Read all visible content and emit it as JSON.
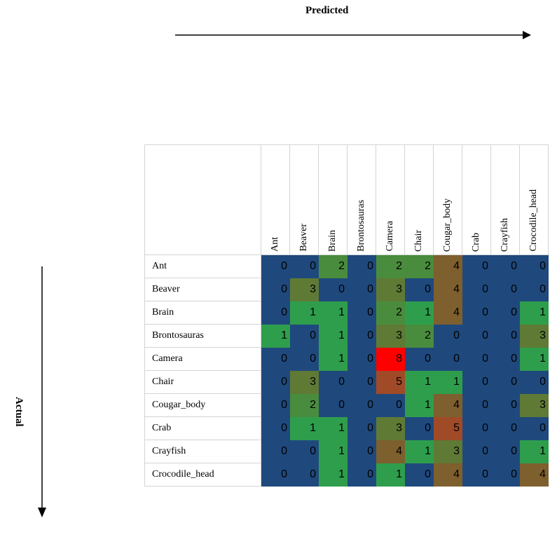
{
  "axis": {
    "predicted_label": "Predicted",
    "actual_label": "Actual"
  },
  "chart_data": {
    "type": "heatmap",
    "title": "",
    "xlabel": "Predicted",
    "ylabel": "Actual",
    "columns": [
      "Ant",
      "Beaver",
      "Brain",
      "Brontosauras",
      "Camera",
      "Chair",
      "Cougar_body",
      "Crab",
      "Crayfish",
      "Crocodile_head"
    ],
    "rows": [
      "Ant",
      "Beaver",
      "Brain",
      "Brontosauras",
      "Camera",
      "Chair",
      "Cougar_body",
      "Crab",
      "Crayfish",
      "Crocodile_head"
    ],
    "values": [
      [
        0,
        0,
        2,
        0,
        2,
        2,
        4,
        0,
        0,
        0
      ],
      [
        0,
        3,
        0,
        0,
        3,
        0,
        4,
        0,
        0,
        0
      ],
      [
        0,
        1,
        1,
        0,
        2,
        1,
        4,
        0,
        0,
        1
      ],
      [
        1,
        0,
        1,
        0,
        3,
        2,
        0,
        0,
        0,
        3
      ],
      [
        0,
        0,
        1,
        0,
        8,
        0,
        0,
        0,
        0,
        1
      ],
      [
        0,
        3,
        0,
        0,
        5,
        1,
        1,
        0,
        0,
        0
      ],
      [
        0,
        2,
        0,
        0,
        0,
        1,
        4,
        0,
        0,
        3
      ],
      [
        0,
        1,
        1,
        0,
        3,
        0,
        5,
        0,
        0,
        0
      ],
      [
        0,
        0,
        1,
        0,
        4,
        1,
        3,
        0,
        0,
        1
      ],
      [
        0,
        0,
        1,
        0,
        1,
        0,
        4,
        0,
        0,
        4
      ]
    ],
    "color_scale": {
      "0": "#1f497d",
      "1": "#2e9e4c",
      "2": "#4a8c3d",
      "3": "#5f7a35",
      "4": "#7e5f2e",
      "5": "#a04a28",
      "8": "#ff0000"
    }
  }
}
